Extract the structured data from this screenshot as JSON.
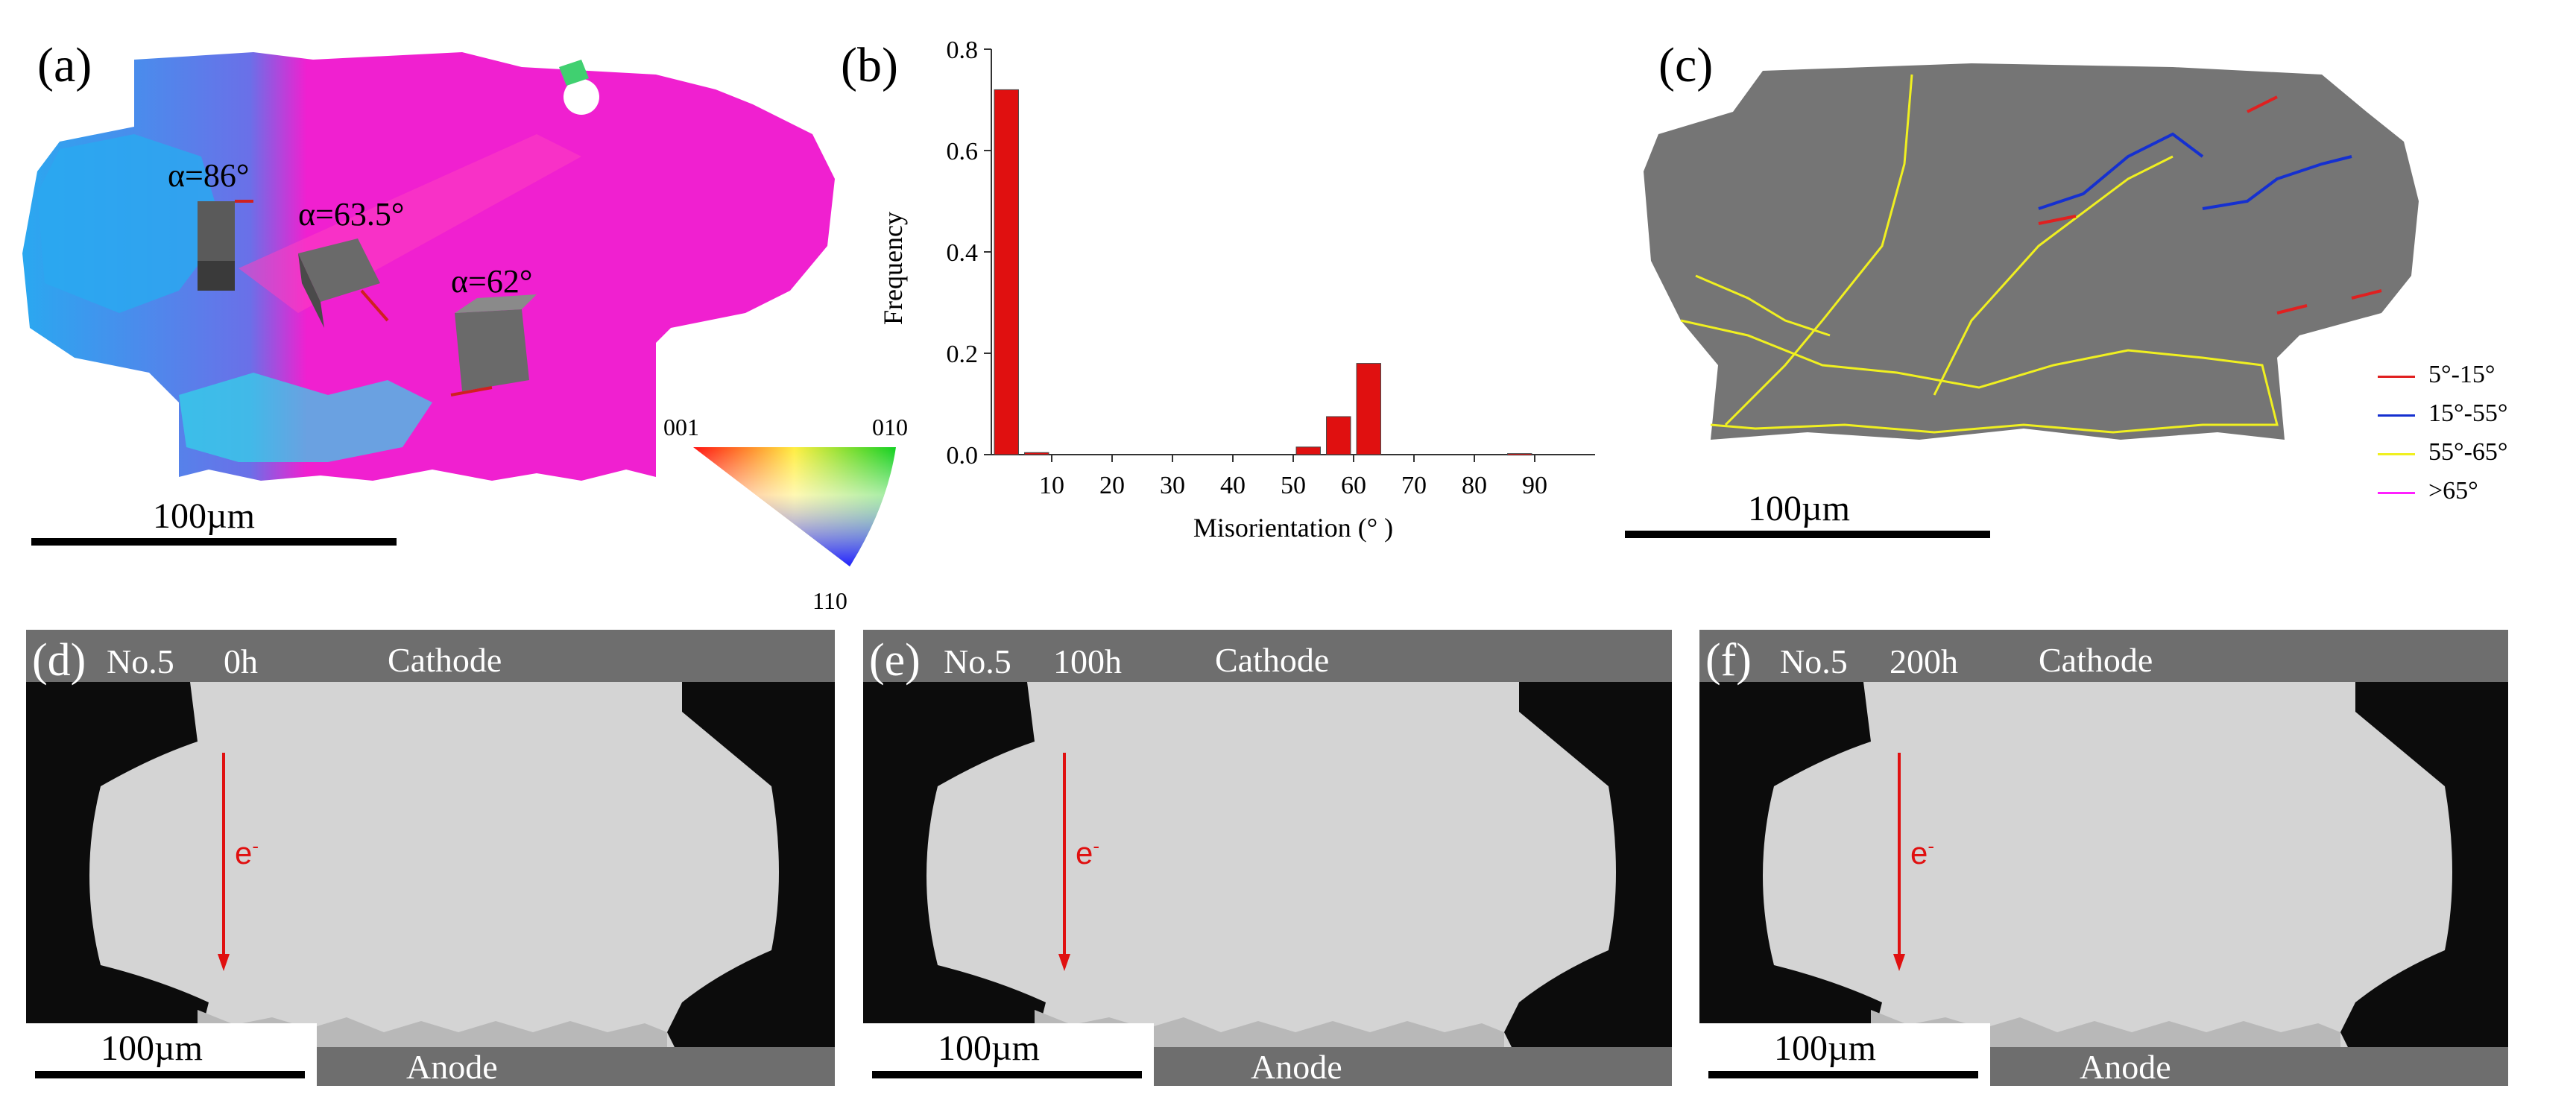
{
  "panel_a": {
    "label": "(a)",
    "angles": [
      "α=86°",
      "α=63.5°",
      "α=62°"
    ],
    "scalebar": "100µm",
    "ipf_key": {
      "corner_001": "001",
      "corner_010": "010",
      "corner_110": "110"
    }
  },
  "panel_b": {
    "label": "(b)"
  },
  "chart_data": {
    "type": "bar",
    "title": "",
    "xlabel": "Misorientation (° )",
    "ylabel": "Frequency",
    "xlim": [
      0,
      100
    ],
    "ylim": [
      0,
      0.8
    ],
    "xticks": [
      10,
      20,
      30,
      40,
      50,
      60,
      70,
      80,
      90
    ],
    "yticks": [
      0.0,
      0.2,
      0.4,
      0.6,
      0.8
    ],
    "ytick_labels": [
      "0.0",
      "0.2",
      "0.4",
      "0.6",
      "0.8"
    ],
    "x": [
      2.5,
      7.5,
      52.5,
      57.5,
      62.5,
      87.5
    ],
    "values": [
      0.72,
      0.004,
      0.015,
      0.075,
      0.18,
      0.002
    ],
    "bar_color": "#e01010"
  },
  "panel_c": {
    "label": "(c)",
    "scalebar": "100µm",
    "legend": [
      {
        "label": "5°-15°",
        "color": "#e02020"
      },
      {
        "label": "15°-55°",
        "color": "#1530d0"
      },
      {
        "label": "55°-65°",
        "color": "#f0f020"
      },
      {
        "label": ">65°",
        "color": "#ff20ff"
      }
    ]
  },
  "sem_panels": [
    {
      "label": "(d)",
      "sample": "No.5",
      "time": "0h",
      "top": "Cathode",
      "bottom": "Anode",
      "electron": "e",
      "electron_sup": "-",
      "scalebar": "100µm"
    },
    {
      "label": "(e)",
      "sample": "No.5",
      "time": "100h",
      "top": "Cathode",
      "bottom": "Anode",
      "electron": "e",
      "electron_sup": "-",
      "scalebar": "100µm"
    },
    {
      "label": "(f)",
      "sample": "No.5",
      "time": "200h",
      "top": "Cathode",
      "bottom": "Anode",
      "electron": "e",
      "electron_sup": "-",
      "scalebar": "100µm"
    }
  ],
  "colors": {
    "ebsd_magenta": "#f020d0",
    "ebsd_blue": "#2aa8f0",
    "sem_solder": "#d4d4d4",
    "sem_pad": "#0c0c0c",
    "arrow_red": "#e01010"
  }
}
